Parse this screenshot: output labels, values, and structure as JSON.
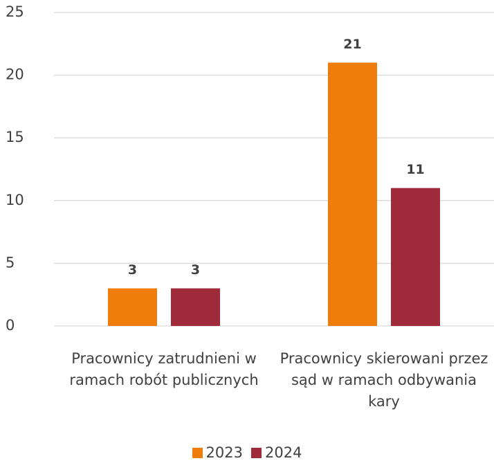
{
  "chart_data": {
    "type": "bar",
    "categories": [
      "Pracownicy zatrudnieni w ramach robót publicznych",
      "Pracownicy skierowani przez sąd w ramach odbywania kary"
    ],
    "series": [
      {
        "name": "2023",
        "color": "#ef7d0b",
        "values": [
          3,
          21
        ]
      },
      {
        "name": "2024",
        "color": "#9e2a3a",
        "values": [
          3,
          11
        ]
      }
    ],
    "ylim": [
      0,
      25
    ],
    "yticks": [
      0,
      5,
      10,
      15,
      20,
      25
    ],
    "grid": true,
    "legend": "bottom"
  }
}
